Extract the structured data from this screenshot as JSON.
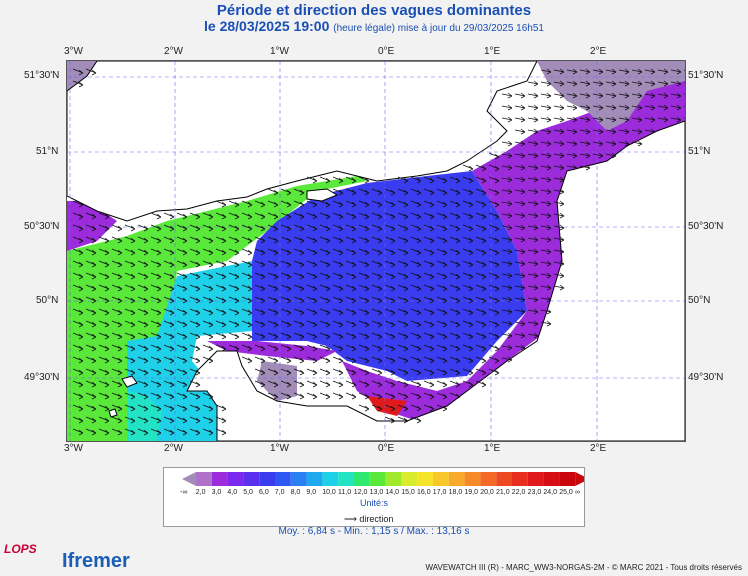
{
  "title": "Période et direction des vagues dominantes",
  "subtitle": {
    "date": "le 28/03/2025 19:00",
    "note": "(heure légale) mise à jour du 29/03/2025 16h51"
  },
  "axes": {
    "lon_labels": [
      "3°W",
      "2°W",
      "1°W",
      "0°E",
      "1°E",
      "2°E"
    ],
    "lat_labels": [
      "51°30'N",
      "51°N",
      "50°30'N",
      "50°N",
      "49°30'N"
    ]
  },
  "legend": {
    "labels": [
      "-∞",
      "2,0",
      "3,0",
      "4,0",
      "5,0",
      "6,0",
      "7,0",
      "8,0",
      "9,0",
      "10,0",
      "11,0",
      "12,0",
      "13,0",
      "14,0",
      "15,0",
      "16,0",
      "17,0",
      "18,0",
      "19,0",
      "20,0",
      "21,0",
      "22,0",
      "23,0",
      "24,0",
      "25,0",
      "∞"
    ],
    "colors": [
      "#a28cb8",
      "#b072c8",
      "#9c2bdc",
      "#7a28ee",
      "#5a30ee",
      "#3a3cf0",
      "#2f58f2",
      "#2b80f2",
      "#20a8ee",
      "#1ed0e8",
      "#22e4c4",
      "#2ee870",
      "#5ae83a",
      "#a0ea2e",
      "#d8ec2c",
      "#f6e42a",
      "#f8c82a",
      "#f8aa2a",
      "#f68a28",
      "#f26a26",
      "#ee4a22",
      "#e82e1e",
      "#e01a1a",
      "#d40e12",
      "#c8060c"
    ],
    "unit": "Unité:s",
    "direction_label": "direction"
  },
  "stats": "Moy. : 6,84 s   -   Min. : 1,15 s / Max. : 13,16 s",
  "footer": "WAVEWATCH III (R) - MARC_WW3-NORGAS-2M - © MARC 2021 - Tous droits réservés",
  "logos": {
    "lops": "LOPS",
    "ifremer": "Ifremer"
  },
  "map_colors": {
    "grey": "#a28cb8",
    "purple": "#9c2bdc",
    "blue": "#3a3cf0",
    "cyan": "#1ed0e8",
    "green": "#5ae83a",
    "teal": "#22e4c4",
    "red": "#e01a1a"
  }
}
